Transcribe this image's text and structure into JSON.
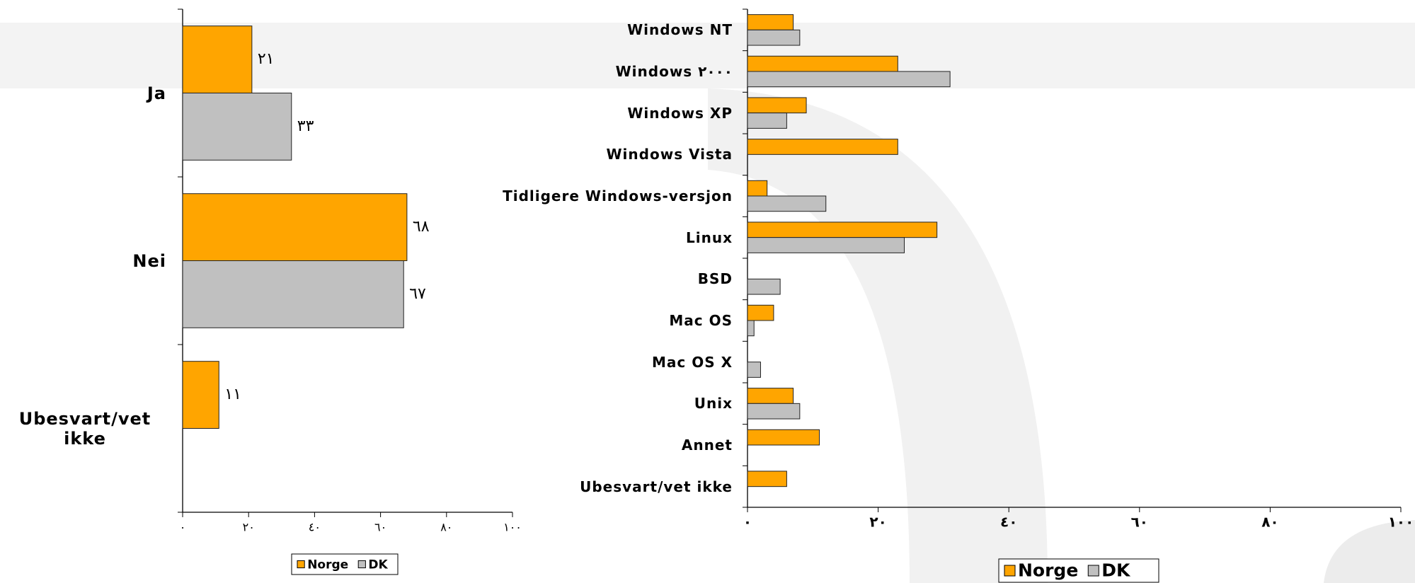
{
  "chart_data": [
    {
      "type": "bar",
      "orientation": "horizontal",
      "categories": [
        "Ja",
        "Nei",
        "Ubesvart/vet ikke"
      ],
      "series": [
        {
          "name": "Norge",
          "color": "#ffa500",
          "values": [
            21,
            68,
            11
          ],
          "value_labels": [
            "٢١",
            "٦٨",
            "١١"
          ]
        },
        {
          "name": "DK",
          "color": "#c0c0c0",
          "values": [
            33,
            67,
            null
          ],
          "value_labels": [
            "٣٣",
            "٦٧",
            null
          ]
        }
      ],
      "xlim": [
        0,
        100
      ],
      "xticks": [
        {
          "value": 0,
          "label": "٠"
        },
        {
          "value": 20,
          "label": "٢٠"
        },
        {
          "value": 40,
          "label": "٤٠"
        },
        {
          "value": 60,
          "label": "٦٠"
        },
        {
          "value": 80,
          "label": "٨٠"
        },
        {
          "value": 100,
          "label": "١٠٠"
        }
      ],
      "legend": "bottom"
    },
    {
      "type": "bar",
      "orientation": "horizontal",
      "categories": [
        "Windows NT",
        "Windows ٢٠٠٠",
        "Windows XP",
        "Windows Vista",
        "Tidligere Windows-versjon",
        "Linux",
        "BSD",
        "Mac OS",
        "Mac OS X",
        "Unix",
        "Annet",
        "Ubesvart/vet ikke"
      ],
      "series": [
        {
          "name": "Norge",
          "color": "#ffa500",
          "values": [
            7,
            23,
            9,
            23,
            3,
            29,
            null,
            4,
            null,
            7,
            11,
            6
          ]
        },
        {
          "name": "DK",
          "color": "#c0c0c0",
          "values": [
            8,
            31,
            6,
            null,
            12,
            24,
            5,
            1,
            2,
            8,
            null,
            null
          ]
        }
      ],
      "xlim": [
        0,
        100
      ],
      "xticks": [
        {
          "value": 0,
          "label": "٠"
        },
        {
          "value": 20,
          "label": "٢٠"
        },
        {
          "value": 40,
          "label": "٤٠"
        },
        {
          "value": 60,
          "label": "٦٠"
        },
        {
          "value": 80,
          "label": "٨٠"
        },
        {
          "value": 100,
          "label": "١٠٠"
        }
      ],
      "legend": "bottom"
    }
  ]
}
